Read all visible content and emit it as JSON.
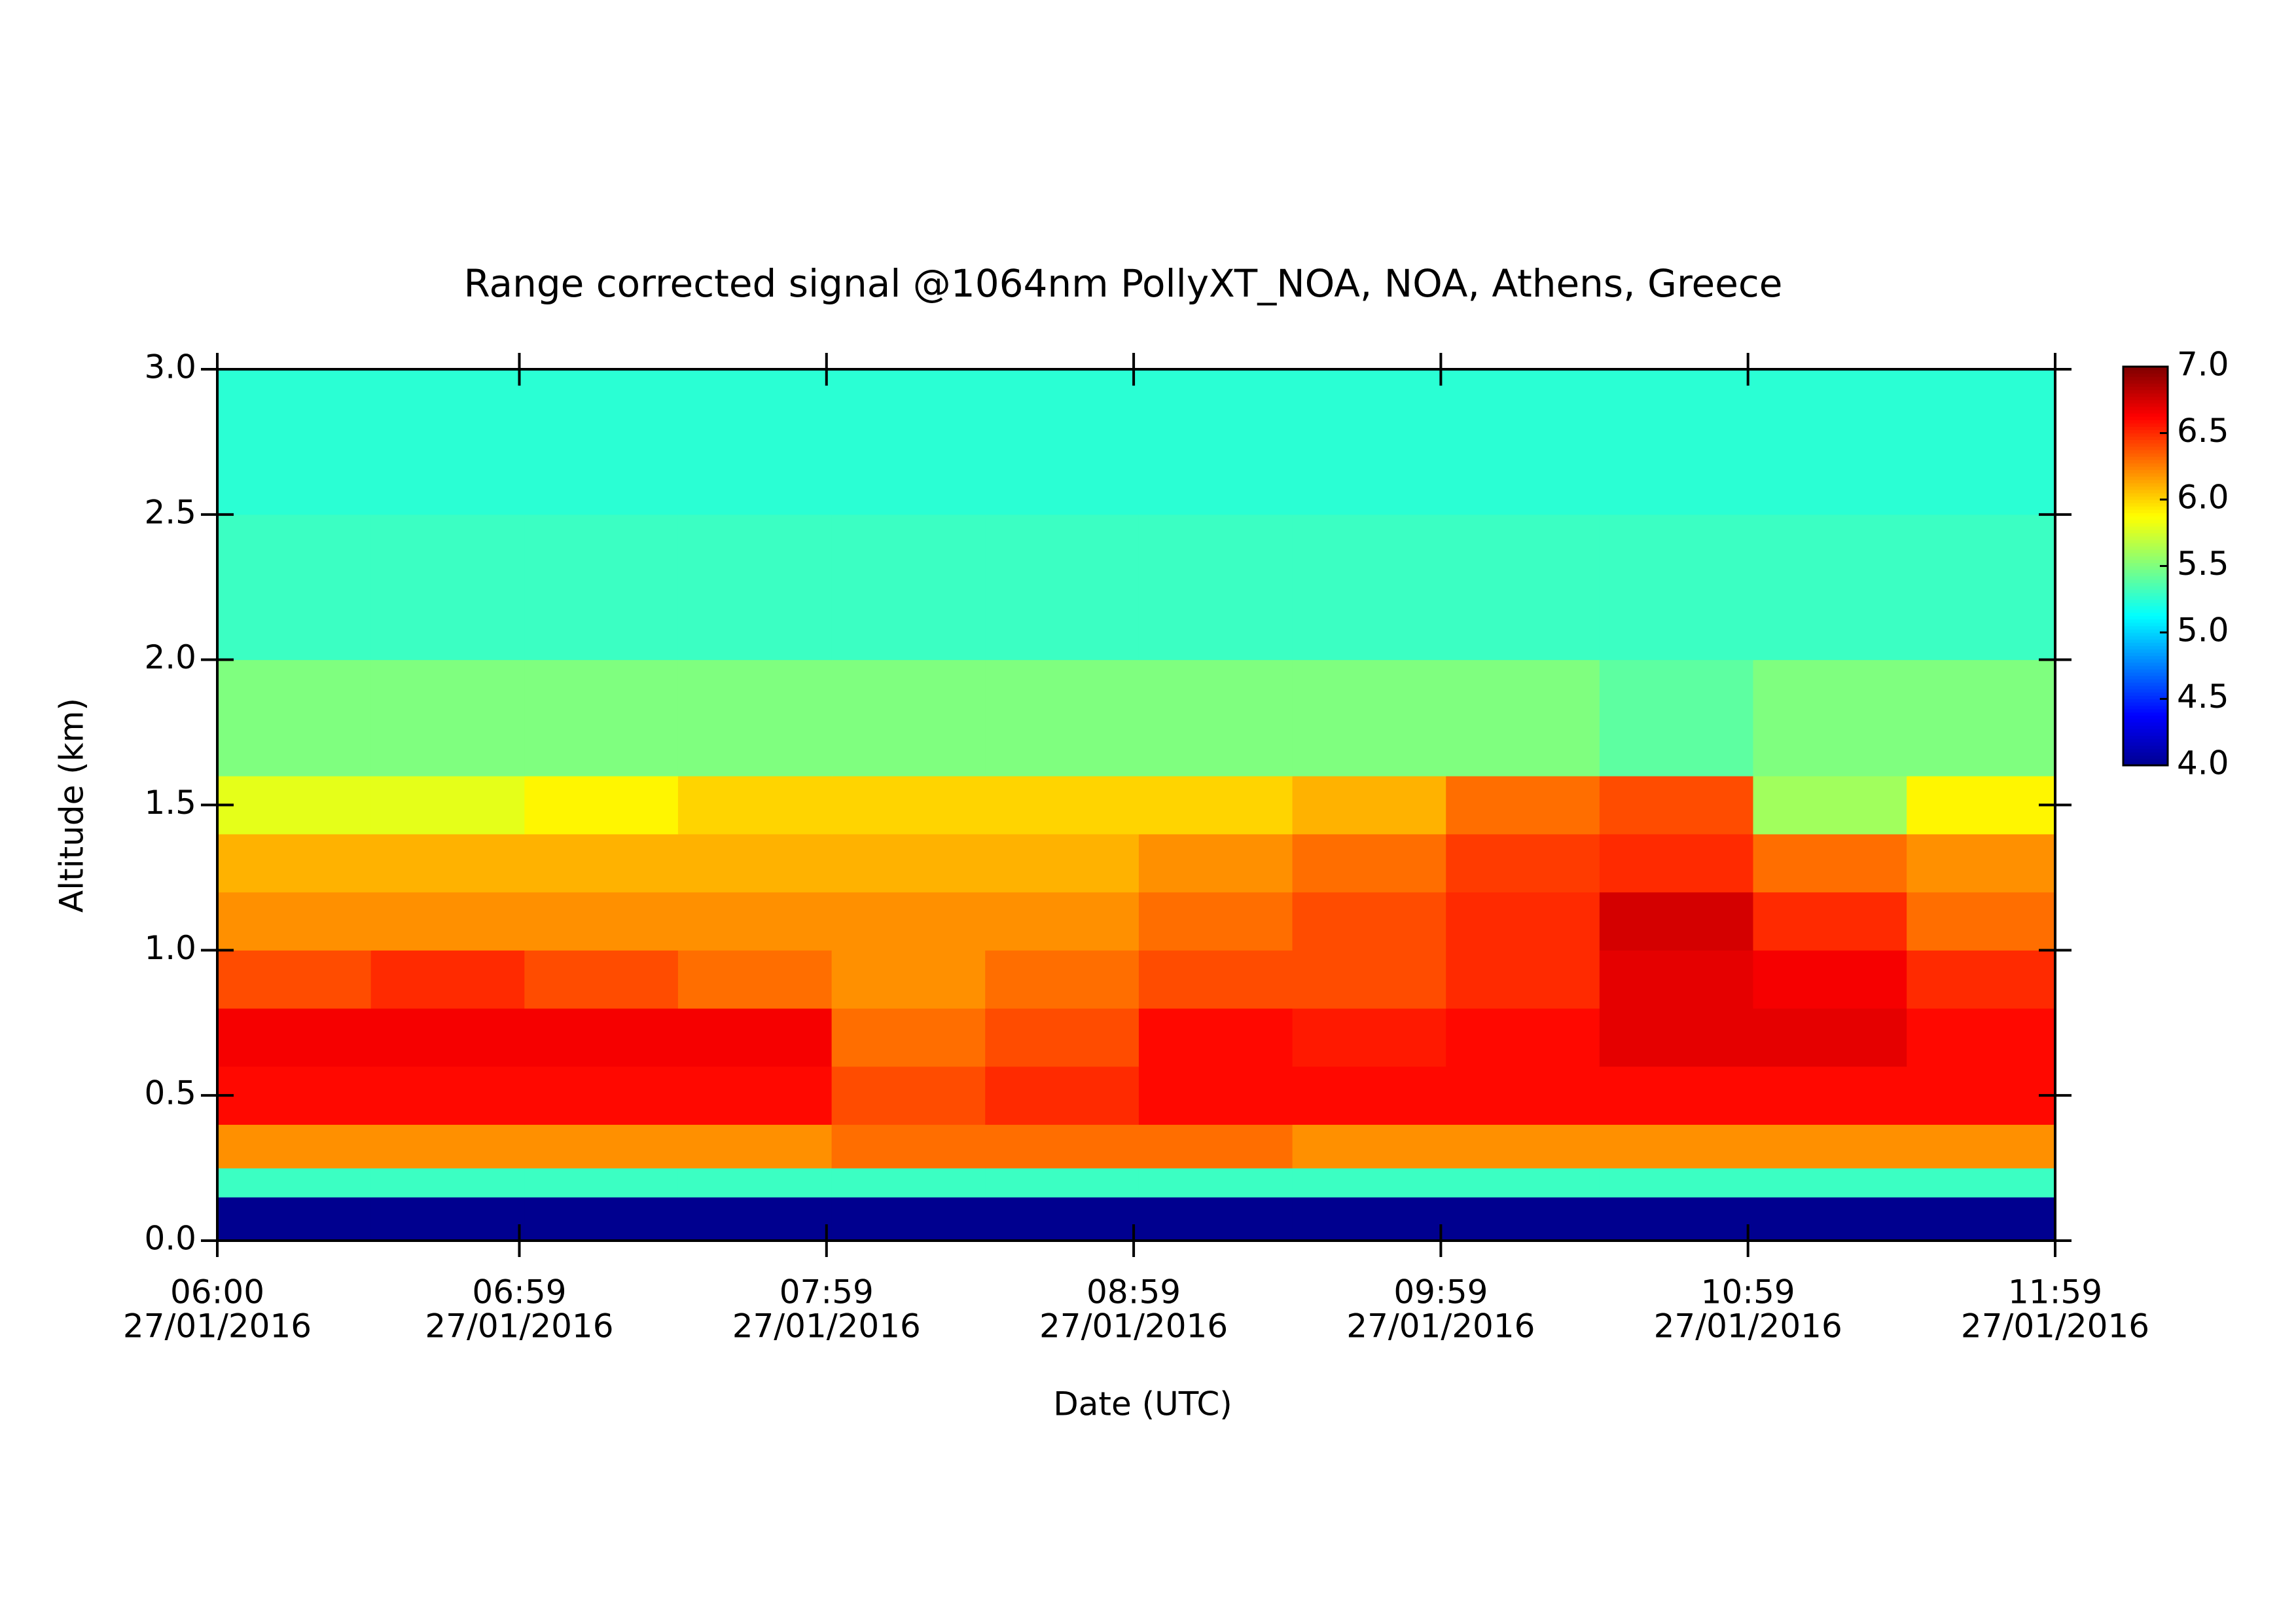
{
  "chart_data": {
    "type": "heatmap",
    "title": "Range corrected signal @1064nm  PollyXT_NOA, NOA, Athens, Greece",
    "xlabel": "Date (UTC)",
    "ylabel": "Altitude (km)",
    "x": [
      "2016-01-27T06:00",
      "2016-01-27T06:30",
      "2016-01-27T07:00",
      "2016-01-27T07:30",
      "2016-01-27T08:00",
      "2016-01-27T08:30",
      "2016-01-27T09:00",
      "2016-01-27T09:30",
      "2016-01-27T10:00",
      "2016-01-27T10:30",
      "2016-01-27T11:00",
      "2016-01-27T11:30",
      "2016-01-27T11:59"
    ],
    "y": [
      0,
      0.15,
      0.25,
      0.4,
      0.6,
      0.8,
      1.0,
      1.2,
      1.4,
      1.6,
      2.0,
      2.5,
      3.0
    ],
    "values": [
      [
        4.0,
        4.0,
        4.0,
        4.0,
        4.0,
        4.0,
        4.0,
        4.0,
        4.0,
        4.0,
        4.0,
        4.0
      ],
      [
        5.3,
        5.3,
        5.3,
        5.3,
        5.3,
        5.3,
        5.3,
        5.3,
        5.3,
        5.3,
        5.3,
        5.3
      ],
      [
        6.2,
        6.2,
        6.2,
        6.2,
        6.3,
        6.3,
        6.3,
        6.2,
        6.2,
        6.2,
        6.2,
        6.2
      ],
      [
        6.6,
        6.6,
        6.6,
        6.6,
        6.4,
        6.5,
        6.6,
        6.6,
        6.6,
        6.6,
        6.6,
        6.6
      ],
      [
        6.65,
        6.65,
        6.65,
        6.65,
        6.3,
        6.4,
        6.6,
        6.55,
        6.6,
        6.7,
        6.7,
        6.6
      ],
      [
        6.4,
        6.5,
        6.4,
        6.3,
        6.2,
        6.3,
        6.4,
        6.4,
        6.5,
        6.7,
        6.65,
        6.5
      ],
      [
        6.2,
        6.2,
        6.2,
        6.2,
        6.2,
        6.2,
        6.3,
        6.4,
        6.5,
        6.75,
        6.5,
        6.3
      ],
      [
        6.1,
        6.1,
        6.1,
        6.1,
        6.1,
        6.1,
        6.2,
        6.3,
        6.45,
        6.5,
        6.3,
        6.2
      ],
      [
        5.8,
        5.8,
        5.9,
        6.0,
        6.0,
        6.0,
        6.0,
        6.1,
        6.3,
        6.4,
        5.6,
        5.9
      ],
      [
        5.5,
        5.5,
        5.5,
        5.5,
        5.5,
        5.5,
        5.5,
        5.5,
        5.5,
        5.4,
        5.5,
        5.5
      ],
      [
        5.3,
        5.3,
        5.3,
        5.3,
        5.3,
        5.3,
        5.3,
        5.3,
        5.3,
        5.3,
        5.3,
        5.3
      ],
      [
        5.25,
        5.25,
        5.25,
        5.25,
        5.25,
        5.25,
        5.25,
        5.25,
        5.25,
        5.25,
        5.25,
        5.25
      ]
    ],
    "xlim": [
      "2016-01-27T06:00",
      "2016-01-27T11:59"
    ],
    "xticks": [
      {
        "value": "2016-01-27T06:00",
        "label": [
          "06:00",
          "27/01/2016"
        ]
      },
      {
        "value": "2016-01-27T06:59",
        "label": [
          "06:59",
          "27/01/2016"
        ]
      },
      {
        "value": "2016-01-27T07:59",
        "label": [
          "07:59",
          "27/01/2016"
        ]
      },
      {
        "value": "2016-01-27T08:59",
        "label": [
          "08:59",
          "27/01/2016"
        ]
      },
      {
        "value": "2016-01-27T09:59",
        "label": [
          "09:59",
          "27/01/2016"
        ]
      },
      {
        "value": "2016-01-27T10:59",
        "label": [
          "10:59",
          "27/01/2016"
        ]
      },
      {
        "value": "2016-01-27T11:59",
        "label": [
          "11:59",
          "27/01/2016"
        ]
      }
    ],
    "ylim": [
      0,
      3.0
    ],
    "yticks": [
      {
        "value": 0,
        "label": "0.0"
      },
      0.5,
      {
        "value": 1,
        "label": "1.0"
      },
      1.5,
      {
        "value": 2,
        "label": "2.0"
      },
      2.5,
      {
        "value": 3,
        "label": "3.0"
      }
    ],
    "zlim": [
      4.0,
      7.0
    ],
    "zticks": [
      {
        "value": 4,
        "label": "4.0"
      },
      4.5,
      {
        "value": 5,
        "label": "5.0"
      },
      5.5,
      {
        "value": 6,
        "label": "6.0"
      },
      6.5,
      {
        "value": 7,
        "label": "7.0"
      }
    ],
    "colormap": [
      "#00008f",
      "#0000ff",
      "#007fff",
      "#00ffff",
      "#7fff7f",
      "#ffff00",
      "#ff7f00",
      "#ff0000",
      "#7f0000"
    ]
  }
}
